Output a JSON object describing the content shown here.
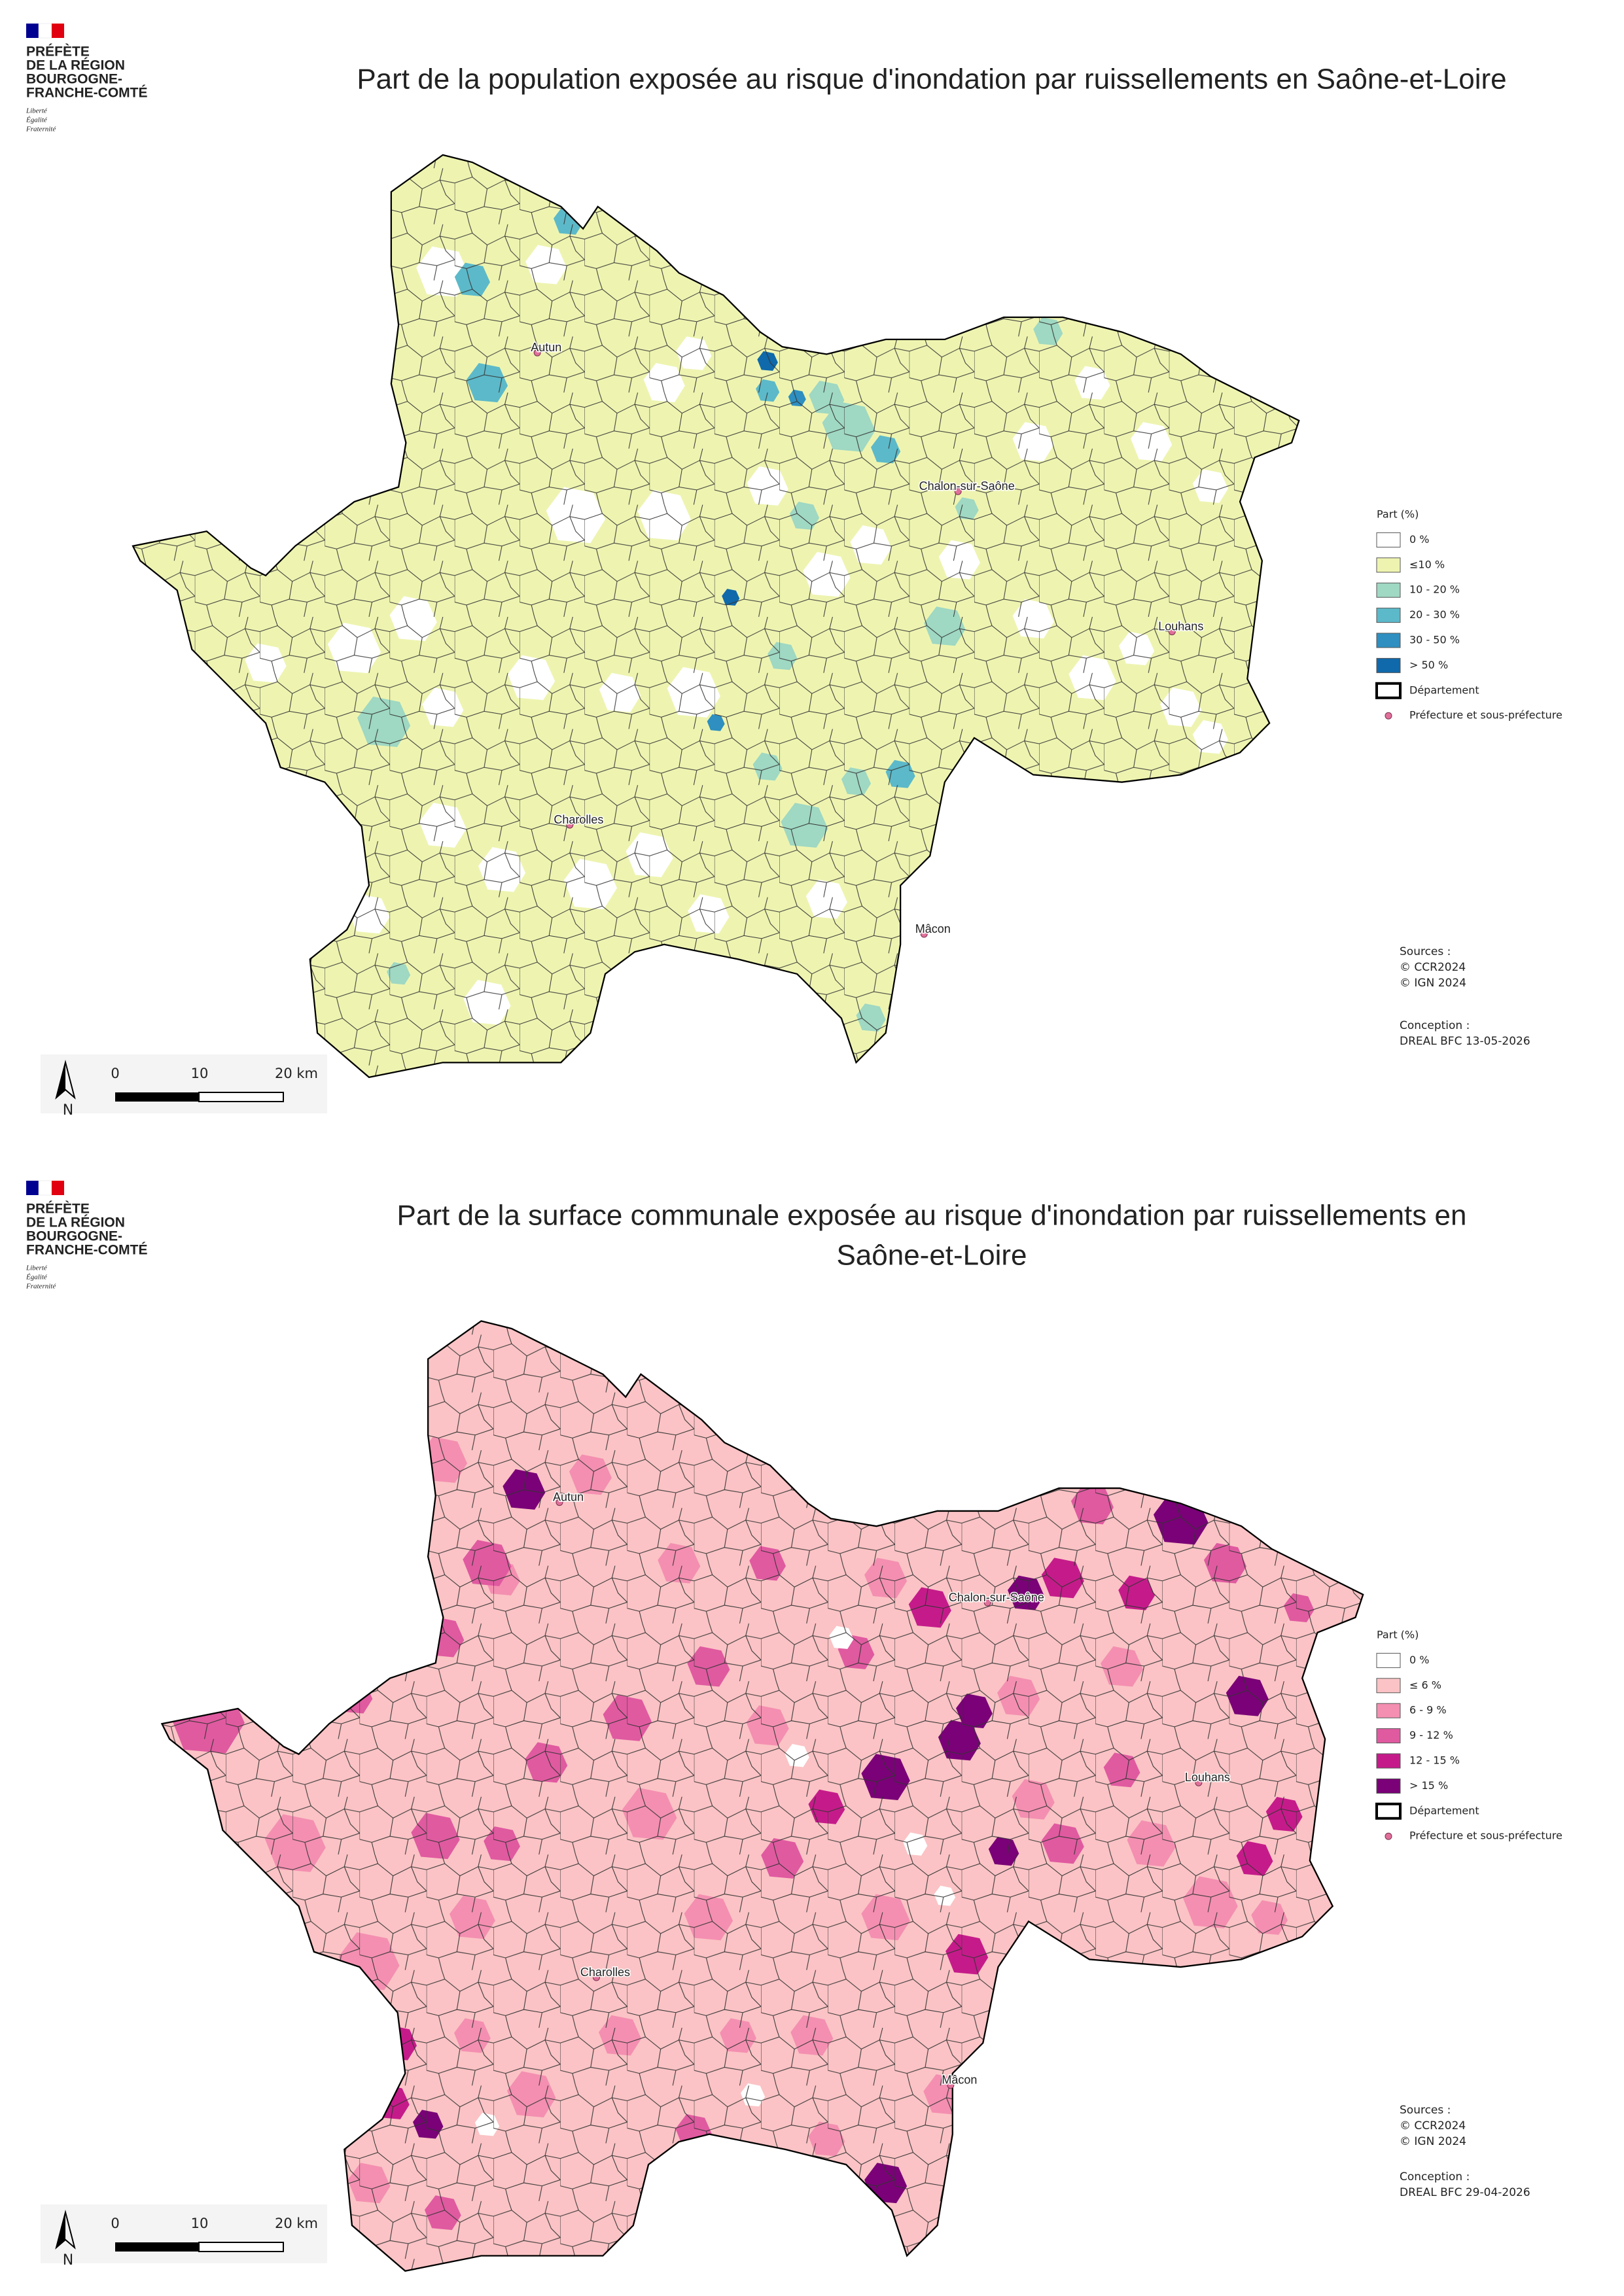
{
  "maps": [
    {
      "logo": {
        "lines": [
          "PRÉFÈTE",
          "DE LA RÉGION",
          "BOURGOGNE-",
          "FRANCHE-COMTÉ"
        ],
        "motto": [
          "Liberté",
          "Égalité",
          "Fraternité"
        ]
      },
      "title": [
        "Part de la population exposée au risque d'inondation par ruissellements en Saône-et-Loire"
      ],
      "places": [
        "Autun",
        "Chalon-sur-Saône",
        "Louhans",
        "Charolles",
        "Mâcon"
      ],
      "legend": {
        "title": "Part (%)",
        "classes": [
          {
            "label": "0 %",
            "color": "#ffffff"
          },
          {
            "label": "≤10 %",
            "color": "#eef4b0"
          },
          {
            "label": "10 - 20 %",
            "color": "#9fd8c3"
          },
          {
            "label": "20 - 30 %",
            "color": "#5cb9c9"
          },
          {
            "label": "30 - 50 %",
            "color": "#2e8fc0"
          },
          {
            "label": "> 50 %",
            "color": "#1069aa"
          }
        ],
        "department": "Département",
        "prefecture": "Préfecture et sous-préfecture"
      },
      "scale": [
        "0",
        "10",
        "20 km"
      ],
      "north": "N",
      "sources": [
        "Sources :",
        "© CCR2024",
        "© IGN 2024"
      ],
      "conception": [
        "Conception :",
        "DREAL BFC 13-05-2026"
      ]
    },
    {
      "logo": {
        "lines": [
          "PRÉFÈTE",
          "DE LA RÉGION",
          "BOURGOGNE-",
          "FRANCHE-COMTÉ"
        ],
        "motto": [
          "Liberté",
          "Égalité",
          "Fraternité"
        ]
      },
      "title": [
        "Part de la surface communale exposée au risque d'inondation par ruissellements en",
        "Saône-et-Loire"
      ],
      "places": [
        "Autun",
        "Chalon-sur-Saône",
        "Louhans",
        "Charolles",
        "Mâcon"
      ],
      "legend": {
        "title": "Part (%)",
        "classes": [
          {
            "label": "0 %",
            "color": "#ffffff"
          },
          {
            "label": "≤ 6 %",
            "color": "#fbc3c5"
          },
          {
            "label": "6 - 9 %",
            "color": "#f48fb1"
          },
          {
            "label": "9 - 12 %",
            "color": "#e05aa0"
          },
          {
            "label": "12 - 15 %",
            "color": "#c51b8a"
          },
          {
            "label": "> 15 %",
            "color": "#7a0177"
          }
        ],
        "department": "Département",
        "prefecture": "Préfecture et sous-préfecture"
      },
      "scale": [
        "0",
        "10",
        "20 km"
      ],
      "north": "N",
      "sources": [
        "Sources :",
        "© CCR2024",
        "© IGN 2024"
      ],
      "conception": [
        "Conception :",
        "DREAL BFC 29-04-2026"
      ]
    }
  ]
}
